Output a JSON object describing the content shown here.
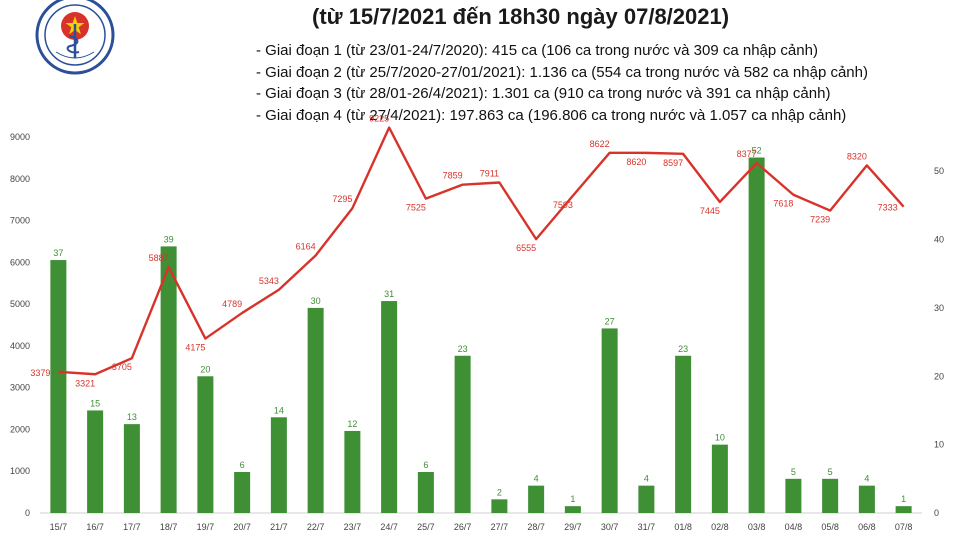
{
  "title": {
    "line2": "(từ 15/7/2021 đến 18h30 ngày 07/8/2021)"
  },
  "logo": {
    "text": "MINISTRY OF HEALTH"
  },
  "stages": [
    "- Giai đoạn 1 (từ 23/01-24/7/2020): 415 ca (106 ca trong nước và 309 ca nhập cảnh)",
    "- Giai đoạn 2 (từ 25/7/2020-27/01/2021): 1.136 ca (554 ca trong nước và 582 ca nhập cảnh)",
    "- Giai đoạn 3 (từ 28/01-26/4/2021): 1.301 ca (910 ca trong nước và 391 ca nhập cảnh)",
    "- Giai đoạn 4 (từ 27/4/2021): 197.863 ca (196.806 ca trong nước và 1.057 ca nhập cảnh)"
  ],
  "chart_data": {
    "type": "bar",
    "categories": [
      "15/7",
      "16/7",
      "17/7",
      "18/7",
      "19/7",
      "20/7",
      "21/7",
      "22/7",
      "23/7",
      "24/7",
      "25/7",
      "26/7",
      "27/7",
      "28/7",
      "29/7",
      "30/7",
      "31/7",
      "01/8",
      "02/8",
      "03/8",
      "04/8",
      "05/8",
      "06/8",
      "07/8"
    ],
    "series": [
      {
        "values": [
          37,
          15,
          13,
          39,
          20,
          6,
          14,
          30,
          12,
          31,
          6,
          23,
          2,
          4,
          1,
          27,
          4,
          23,
          10,
          52,
          5,
          5,
          4,
          1
        ],
        "axis": "right",
        "color": "#3f8f35"
      },
      {
        "values": [
          3379,
          3321,
          3705,
          5887,
          4175,
          4789,
          5343,
          6164,
          7295,
          9225,
          7525,
          7859,
          7911,
          6555,
          7593,
          8622,
          8620,
          8597,
          7445,
          8377,
          7618,
          7239,
          8320,
          7333
        ],
        "axis": "left",
        "color": "#d8332a",
        "mark": "line"
      }
    ],
    "ylim_left": [
      0,
      9000
    ],
    "yticks_left": [
      0,
      1000,
      2000,
      3000,
      4000,
      5000,
      6000,
      7000,
      8000,
      9000
    ],
    "ylim_right": [
      0,
      55
    ],
    "yticks_right": [
      0,
      10,
      20,
      30,
      40,
      50
    ],
    "grid": false,
    "legend": "none"
  }
}
